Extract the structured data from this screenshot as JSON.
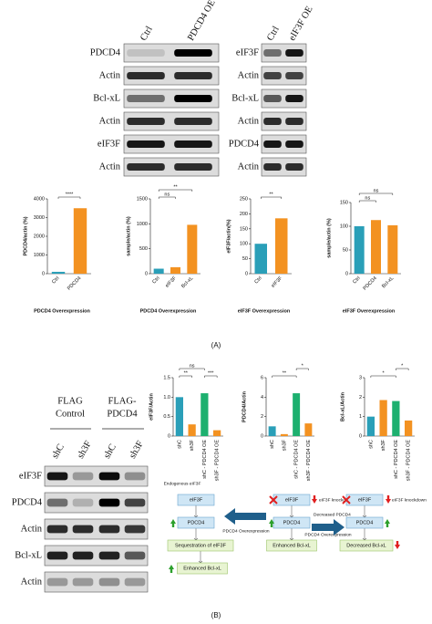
{
  "blots": [
    {
      "columns": [
        "Ctrl",
        "PDCD4 OE"
      ],
      "rows": [
        "PDCD4",
        "Actin",
        "Bcl-xL",
        "Actin",
        "eIF3F",
        "Actin"
      ]
    },
    {
      "columns": [
        "Ctrl",
        "eIF3F OE"
      ],
      "rows": [
        "eIF3F",
        "Actin",
        "Bcl-xL",
        "Actin",
        "PDCD4",
        "Actin"
      ]
    },
    {
      "headers": [
        [
          "FLAG",
          "Control"
        ],
        [
          "FLAG-",
          "PDCD4"
        ]
      ],
      "columns": [
        "shC",
        "sh3F",
        "shC",
        "sh3F"
      ],
      "rows": [
        "eIF3F",
        "PDCD4",
        "Actin",
        "Bcl-xL",
        "Actin"
      ]
    }
  ],
  "chart_data": [
    {
      "type": "bar",
      "y_label": "PDCD4/actin (%)",
      "x_label": "PDCD4 Overexpression",
      "categories": [
        "Ctrl",
        "PDCD4"
      ],
      "values": [
        100,
        3500
      ],
      "colors": [
        "#2a9fb8",
        "#f39221"
      ],
      "ylim": [
        0,
        4000
      ],
      "yticks": [
        0,
        1000,
        2000,
        3000,
        4000
      ],
      "annotations": [
        "****"
      ]
    },
    {
      "type": "bar",
      "y_label": "sample/actin (%)",
      "x_label": "PDCD4 Overexpression",
      "categories": [
        "Ctrl",
        "eIF3F",
        "Bcl-xL"
      ],
      "values": [
        100,
        130,
        980
      ],
      "colors": [
        "#2a9fb8",
        "#f39221",
        "#f39221"
      ],
      "ylim": [
        0,
        1500
      ],
      "yticks": [
        0,
        500,
        1000,
        1500
      ],
      "annotations": [
        "ns",
        "**"
      ]
    },
    {
      "type": "bar",
      "y_label": "eIF3F/actin(%)",
      "x_label": "eIF3F Overexpression",
      "categories": [
        "Ctrl",
        "eIF3F"
      ],
      "values": [
        100,
        185
      ],
      "colors": [
        "#2a9fb8",
        "#f39221"
      ],
      "ylim": [
        0,
        250
      ],
      "yticks": [
        0,
        50,
        100,
        150,
        200,
        250
      ],
      "annotations": [
        "**"
      ]
    },
    {
      "type": "bar",
      "y_label": "sample/actin (%)",
      "x_label": "eIF3F Overexpression",
      "categories": [
        "Ctrl",
        "PDCD4",
        "Bcl-xL"
      ],
      "values": [
        100,
        113,
        102
      ],
      "colors": [
        "#2a9fb8",
        "#f39221",
        "#f39221"
      ],
      "ylim": [
        0,
        150
      ],
      "yticks": [
        0,
        50,
        100,
        150
      ],
      "annotations": [
        "ns",
        "ns"
      ]
    },
    {
      "type": "bar",
      "y_label": "eIF3F/Actin",
      "categories": [
        "shC",
        "sh3F",
        "shC - PDCD4 OE",
        "sh3F - PDCD4 OE"
      ],
      "values": [
        1.0,
        0.3,
        1.1,
        0.15
      ],
      "colors": [
        "#2a9fb8",
        "#f39221",
        "#1db06f",
        "#f39221"
      ],
      "ylim": [
        0,
        1.5
      ],
      "yticks": [
        0,
        0.5,
        {
          "value": 1,
          "label": "1.0"
        },
        1.5
      ],
      "annotations": [
        "ns",
        "**",
        "***"
      ]
    },
    {
      "type": "bar",
      "y_label": "PDCD4/Actin",
      "categories": [
        "shC",
        "sh3F",
        "shC - PDCD4 OE",
        "sh3F - PDCD4 OE"
      ],
      "values": [
        1,
        0.2,
        4.4,
        1.3
      ],
      "colors": [
        "#2a9fb8",
        "#f39221",
        "#1db06f",
        "#f39221"
      ],
      "ylim": [
        0,
        6
      ],
      "yticks": [
        0,
        2,
        4,
        6
      ],
      "annotations": [
        "*",
        "**"
      ]
    },
    {
      "type": "bar",
      "y_label": "Bcl-xL/Actin",
      "categories": [
        "shC",
        "sh3F",
        "shC - PDCD4 OE",
        "sh3F - PDCD4 OE"
      ],
      "values": [
        1,
        1.85,
        1.8,
        0.8
      ],
      "colors": [
        "#2a9fb8",
        "#f39221",
        "#1db06f",
        "#f39221"
      ],
      "ylim": [
        0,
        3
      ],
      "yticks": [
        0,
        1,
        2,
        3
      ],
      "annotations": [
        "*",
        "*"
      ]
    }
  ],
  "diagram": {
    "texts": [
      "Endogenous eIF3F",
      "eIF3F",
      "PDCD4",
      "Sequestration of eIF3F",
      "Enhanced Bcl-xL",
      "PDCD4 Overexpression",
      "eIF3F",
      "eIF3F knockdown",
      "PDCD4",
      "Decreased PDCD4",
      "Enhanced Bcl-xL",
      "PDCD4 Overexpression",
      "eIF3F",
      "eIF3F knockdown",
      "PDCD4",
      "Decreased Bcl-xL"
    ]
  },
  "panel_labels": [
    "(A)",
    "(B)"
  ]
}
